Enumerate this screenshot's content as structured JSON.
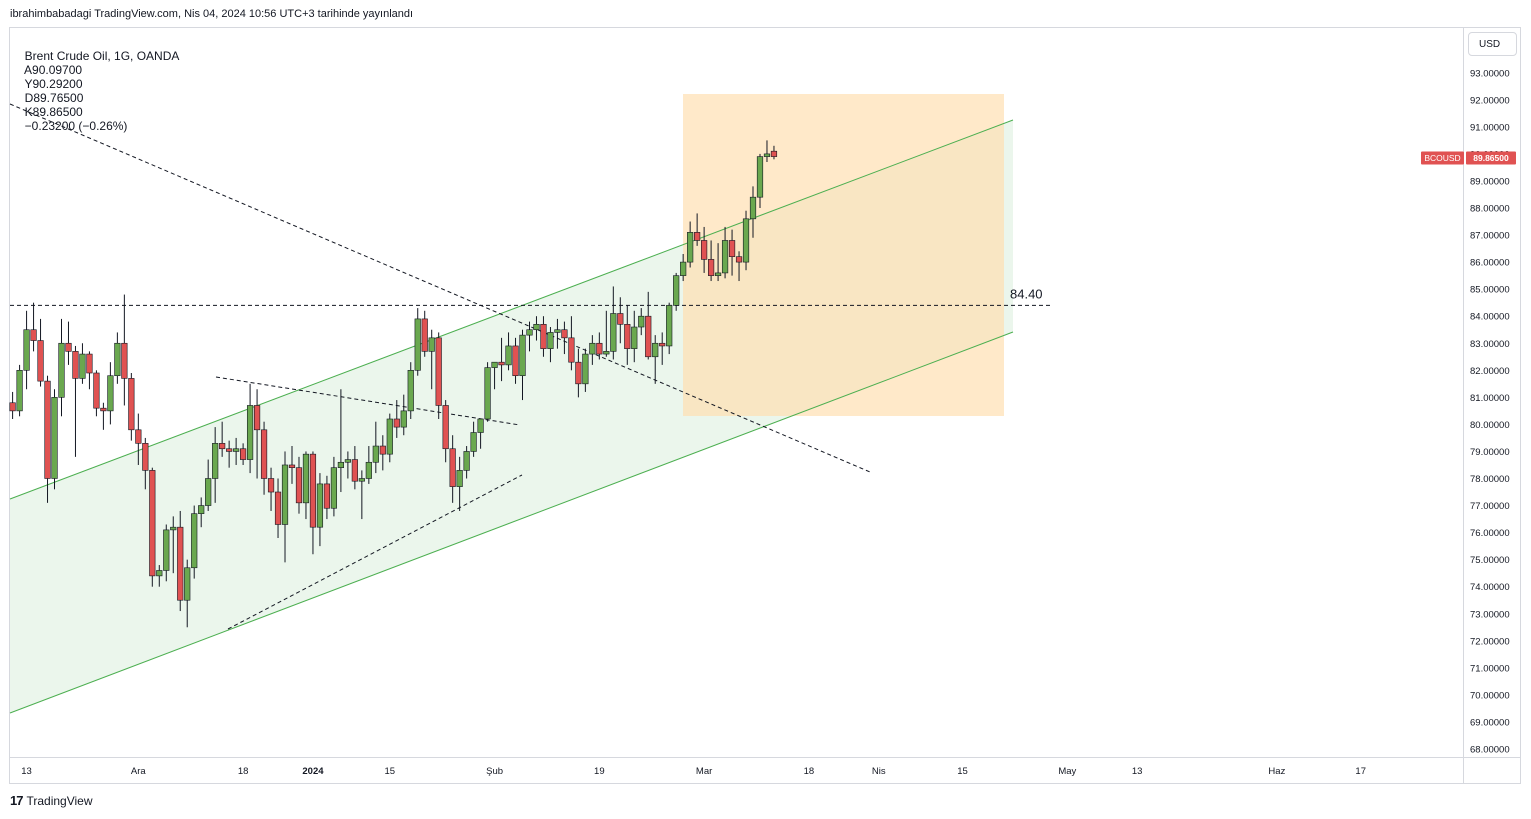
{
  "header": {
    "publisher": "ibrahimbabadagi",
    "published_line": "ibrahimbabadagi TradingView.com, Nis 04, 2024 10:56 UTC+3 tarihinde yayınlandı"
  },
  "legend": {
    "symbol": "Brent Crude Oil, 1G, OANDA",
    "open": "A90.09700",
    "high": "Y90.29200",
    "low": "D89.76500",
    "close": "K89.86500",
    "change": "−0.23200 (−0.26%)"
  },
  "currency_button": "USD",
  "price_tag": {
    "symbol": "BCOUSD",
    "value": "89.86500"
  },
  "footer": {
    "logo": "17",
    "brand": "TradingView"
  },
  "colors": {
    "up": "#6aa84f",
    "down": "#e05252",
    "channel": "#4caf50",
    "box": "#ffe0b2"
  },
  "chart_data": {
    "type": "candlestick",
    "symbol": "BCOUSD",
    "current_price": 89.865,
    "ylim": [
      67.5,
      94.2
    ],
    "y_ticks": [
      {
        "value": 68,
        "label": "68.00000"
      },
      {
        "value": 69,
        "label": "69.00000"
      },
      {
        "value": 70,
        "label": "70.00000"
      },
      {
        "value": 71,
        "label": "71.00000"
      },
      {
        "value": 72,
        "label": "72.00000"
      },
      {
        "value": 73,
        "label": "73.00000"
      },
      {
        "value": 74,
        "label": "74.00000"
      },
      {
        "value": 75,
        "label": "75.00000"
      },
      {
        "value": 76,
        "label": "76.00000"
      },
      {
        "value": 77,
        "label": "77.00000"
      },
      {
        "value": 78,
        "label": "78.00000"
      },
      {
        "value": 79,
        "label": "79.00000"
      },
      {
        "value": 80,
        "label": "80.00000"
      },
      {
        "value": 81,
        "label": "81.00000"
      },
      {
        "value": 82,
        "label": "82.00000"
      },
      {
        "value": 83,
        "label": "83.00000"
      },
      {
        "value": 84,
        "label": "84.00000"
      },
      {
        "value": 85,
        "label": "85.00000"
      },
      {
        "value": 86,
        "label": "86.00000"
      },
      {
        "value": 87,
        "label": "87.00000"
      },
      {
        "value": 88,
        "label": "88.00000"
      },
      {
        "value": 89,
        "label": "89.00000"
      },
      {
        "value": 90,
        "label": "90.00000"
      },
      {
        "value": 91,
        "label": "91.00000"
      },
      {
        "value": 92,
        "label": "92.00000"
      },
      {
        "value": 93,
        "label": "93.00000"
      }
    ],
    "x_ticks": [
      {
        "bar": 2,
        "label": "13",
        "bold": false
      },
      {
        "bar": 18,
        "label": "Ara",
        "bold": false
      },
      {
        "bar": 33,
        "label": "18",
        "bold": false
      },
      {
        "bar": 43,
        "label": "2024",
        "bold": true
      },
      {
        "bar": 54,
        "label": "15",
        "bold": false
      },
      {
        "bar": 69,
        "label": "Şub",
        "bold": false
      },
      {
        "bar": 84,
        "label": "19",
        "bold": false
      },
      {
        "bar": 99,
        "label": "Mar",
        "bold": false
      },
      {
        "bar": 114,
        "label": "18",
        "bold": false
      },
      {
        "bar": 124,
        "label": "Nis",
        "bold": false
      },
      {
        "bar": 136,
        "label": "15",
        "bold": false
      },
      {
        "bar": 151,
        "label": "May",
        "bold": false
      },
      {
        "bar": 161,
        "label": "13",
        "bold": false
      },
      {
        "bar": 181,
        "label": "Haz",
        "bold": false
      },
      {
        "bar": 193,
        "label": "17",
        "bold": false
      }
    ],
    "candles": [
      [
        80.8,
        81.2,
        80.2,
        80.5
      ],
      [
        80.5,
        82.2,
        80.3,
        82.0
      ],
      [
        82.0,
        84.2,
        81.3,
        83.5
      ],
      [
        83.5,
        84.5,
        82.7,
        83.1
      ],
      [
        83.1,
        83.9,
        81.4,
        81.6
      ],
      [
        81.6,
        81.8,
        77.1,
        78.0
      ],
      [
        78.0,
        81.3,
        77.6,
        81.0
      ],
      [
        81.0,
        83.9,
        80.3,
        83.0
      ],
      [
        83.0,
        83.8,
        82.2,
        82.7
      ],
      [
        82.7,
        82.9,
        78.8,
        81.7
      ],
      [
        81.7,
        83.0,
        81.5,
        82.6
      ],
      [
        82.6,
        82.7,
        81.3,
        81.9
      ],
      [
        81.9,
        82.0,
        80.3,
        80.6
      ],
      [
        80.6,
        80.8,
        79.8,
        80.5
      ],
      [
        80.5,
        82.3,
        80.0,
        81.8
      ],
      [
        81.8,
        83.4,
        81.5,
        83.0
      ],
      [
        83.0,
        84.8,
        80.7,
        81.7
      ],
      [
        81.7,
        81.9,
        79.4,
        79.8
      ],
      [
        79.8,
        80.4,
        78.5,
        79.3
      ],
      [
        79.3,
        79.5,
        77.6,
        78.3
      ],
      [
        78.3,
        78.4,
        74.0,
        74.4
      ],
      [
        74.4,
        74.8,
        74.0,
        74.6
      ],
      [
        74.6,
        76.3,
        74.2,
        76.1
      ],
      [
        76.1,
        76.6,
        74.5,
        76.2
      ],
      [
        76.2,
        76.8,
        73.1,
        73.5
      ],
      [
        73.5,
        75.0,
        72.5,
        74.7
      ],
      [
        74.7,
        77.0,
        74.3,
        76.7
      ],
      [
        76.7,
        77.3,
        76.2,
        77.0
      ],
      [
        77.0,
        78.7,
        76.8,
        78.0
      ],
      [
        78.0,
        79.9,
        77.1,
        79.3
      ],
      [
        79.3,
        80.1,
        78.8,
        79.1
      ],
      [
        79.1,
        79.4,
        78.4,
        79.0
      ],
      [
        79.0,
        79.5,
        78.5,
        79.1
      ],
      [
        79.1,
        79.3,
        78.5,
        78.7
      ],
      [
        78.7,
        81.5,
        78.2,
        80.7
      ],
      [
        80.7,
        81.3,
        78.0,
        79.8
      ],
      [
        79.8,
        80.1,
        77.4,
        78.0
      ],
      [
        78.0,
        78.4,
        76.8,
        77.5
      ],
      [
        77.5,
        78.0,
        75.8,
        76.3
      ],
      [
        76.3,
        79.0,
        74.9,
        78.5
      ],
      [
        78.5,
        79.2,
        77.8,
        78.4
      ],
      [
        78.4,
        78.8,
        76.7,
        77.1
      ],
      [
        77.1,
        79.0,
        76.5,
        78.9
      ],
      [
        78.9,
        79.0,
        75.2,
        76.2
      ],
      [
        76.2,
        78.2,
        75.5,
        77.8
      ],
      [
        77.8,
        78.1,
        76.5,
        76.9
      ],
      [
        76.9,
        78.8,
        76.6,
        78.4
      ],
      [
        78.4,
        81.3,
        77.5,
        78.6
      ],
      [
        78.6,
        79.0,
        78.0,
        78.7
      ],
      [
        78.7,
        79.2,
        77.6,
        77.9
      ],
      [
        77.9,
        78.3,
        76.5,
        78.0
      ],
      [
        78.0,
        79.2,
        77.8,
        78.6
      ],
      [
        78.6,
        80.1,
        78.2,
        79.2
      ],
      [
        79.2,
        79.6,
        78.3,
        78.9
      ],
      [
        78.9,
        80.4,
        78.6,
        80.2
      ],
      [
        80.2,
        80.9,
        79.5,
        79.9
      ],
      [
        79.9,
        81.1,
        79.6,
        80.5
      ],
      [
        80.5,
        82.3,
        80.2,
        82.0
      ],
      [
        82.0,
        84.3,
        81.8,
        83.9
      ],
      [
        83.9,
        84.2,
        82.5,
        82.7
      ],
      [
        82.7,
        83.5,
        81.3,
        83.2
      ],
      [
        83.2,
        83.4,
        80.2,
        80.7
      ],
      [
        80.7,
        80.9,
        78.6,
        79.1
      ],
      [
        79.1,
        79.6,
        77.1,
        77.7
      ],
      [
        77.7,
        78.8,
        76.8,
        78.3
      ],
      [
        78.3,
        79.2,
        78.0,
        79.0
      ],
      [
        79.0,
        80.1,
        78.8,
        79.7
      ],
      [
        79.7,
        80.0,
        79.1,
        80.2
      ],
      [
        80.2,
        82.3,
        80.1,
        82.1
      ],
      [
        82.1,
        82.3,
        81.3,
        82.3
      ],
      [
        82.3,
        83.2,
        81.6,
        82.2
      ],
      [
        82.2,
        83.4,
        82.0,
        82.9
      ],
      [
        82.9,
        83.2,
        81.5,
        81.8
      ],
      [
        81.8,
        83.5,
        80.9,
        83.3
      ],
      [
        83.3,
        83.8,
        82.7,
        83.5
      ],
      [
        83.5,
        84.0,
        83.1,
        83.7
      ],
      [
        83.7,
        84.0,
        82.5,
        82.8
      ],
      [
        82.8,
        83.6,
        82.3,
        83.4
      ],
      [
        83.4,
        83.9,
        82.8,
        83.5
      ],
      [
        83.5,
        83.8,
        82.6,
        83.2
      ],
      [
        83.2,
        84.0,
        82.0,
        82.3
      ],
      [
        82.3,
        82.8,
        81.0,
        81.5
      ],
      [
        81.5,
        82.8,
        81.2,
        82.6
      ],
      [
        82.6,
        83.3,
        82.2,
        83.0
      ],
      [
        83.0,
        83.4,
        82.4,
        82.6
      ],
      [
        82.6,
        84.2,
        82.5,
        82.7
      ],
      [
        82.7,
        85.1,
        82.4,
        84.1
      ],
      [
        84.1,
        84.7,
        83.0,
        83.7
      ],
      [
        83.7,
        84.4,
        82.2,
        82.8
      ],
      [
        82.8,
        84.2,
        82.3,
        83.6
      ],
      [
        83.6,
        84.3,
        83.3,
        84.0
      ],
      [
        84.0,
        84.9,
        82.4,
        82.5
      ],
      [
        82.5,
        83.3,
        81.5,
        83.0
      ],
      [
        83.0,
        83.4,
        82.2,
        82.9
      ],
      [
        82.9,
        84.5,
        82.6,
        84.4
      ],
      [
        84.4,
        85.6,
        84.2,
        85.5
      ],
      [
        85.5,
        86.3,
        85.3,
        86.0
      ],
      [
        86.0,
        87.5,
        85.8,
        87.1
      ],
      [
        87.1,
        87.8,
        86.6,
        86.8
      ],
      [
        86.8,
        87.3,
        85.6,
        86.1
      ],
      [
        86.1,
        86.8,
        85.3,
        85.5
      ],
      [
        85.5,
        86.7,
        85.3,
        85.6
      ],
      [
        85.6,
        87.3,
        85.4,
        86.8
      ],
      [
        86.8,
        87.2,
        85.5,
        86.2
      ],
      [
        86.2,
        86.4,
        85.3,
        86.0
      ],
      [
        86.0,
        87.9,
        85.7,
        87.6
      ],
      [
        87.6,
        88.8,
        86.9,
        88.4
      ],
      [
        88.4,
        90.0,
        88.0,
        89.9
      ],
      [
        89.9,
        90.5,
        89.7,
        90.0
      ],
      [
        90.1,
        90.3,
        89.8,
        89.9
      ]
    ],
    "annotations": {
      "horizontal_level": {
        "value": 84.4,
        "label": "84.40"
      }
    }
  }
}
